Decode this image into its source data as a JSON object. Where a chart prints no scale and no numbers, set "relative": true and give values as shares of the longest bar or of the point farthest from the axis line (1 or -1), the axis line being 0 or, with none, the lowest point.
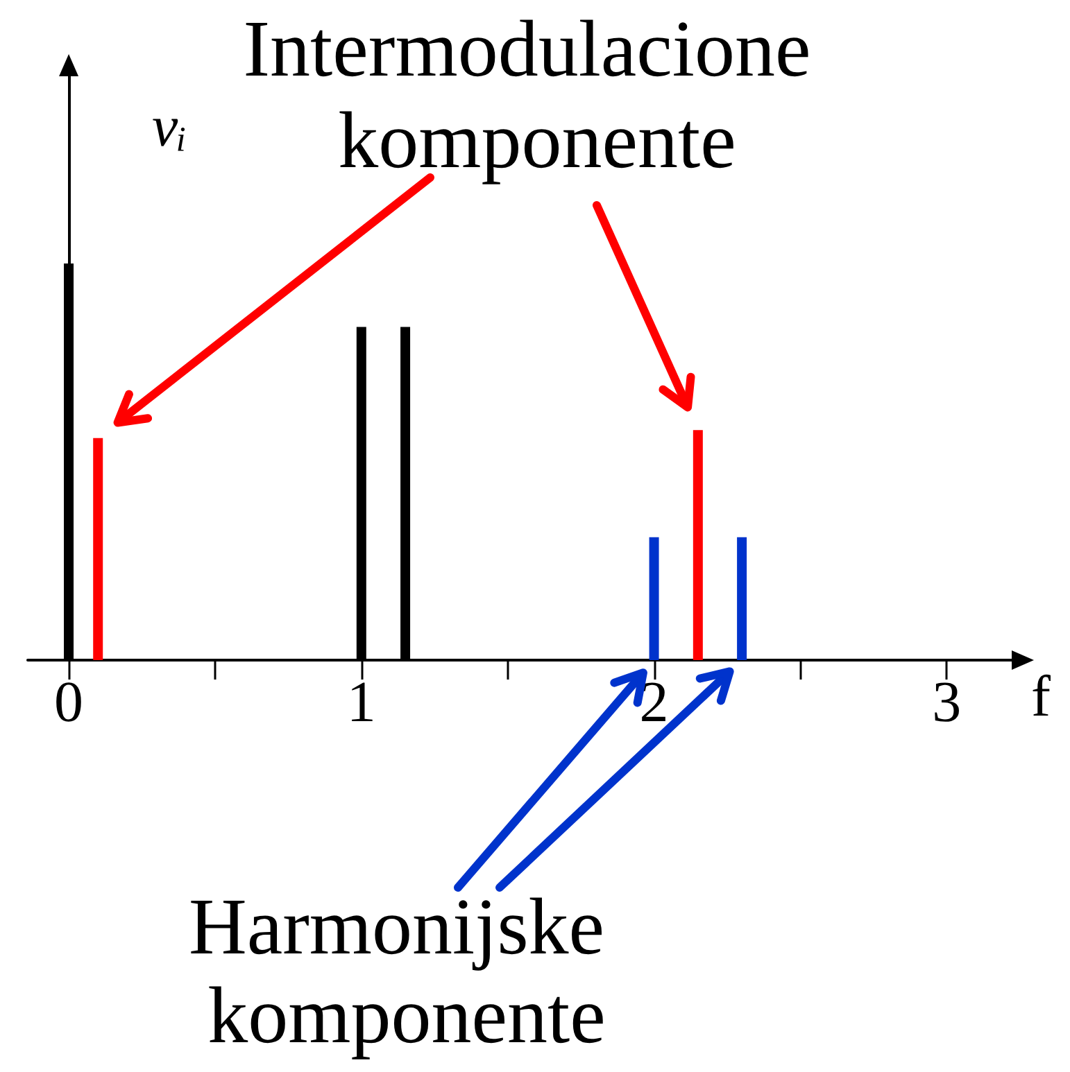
{
  "chart_data": {
    "type": "bar",
    "xlabel": "f",
    "ylabel": "vᵢ",
    "relative": true,
    "xlim": [
      -0.14,
      3.26
    ],
    "xticks": [
      0,
      {
        "value": 0.5,
        "label": null
      },
      1,
      {
        "value": 1.5,
        "label": null
      },
      2,
      {
        "value": 2.5,
        "label": null
      },
      3
    ],
    "series": [
      {
        "color": "#000000",
        "x": [
          0,
          1,
          1.15
        ],
        "values": [
          1,
          0.84,
          0.84
        ]
      },
      {
        "color": "#ff0000",
        "x": [
          0.1,
          2.15
        ],
        "values": [
          0.56,
          0.58
        ]
      },
      {
        "color": "#0033cc",
        "x": [
          2,
          2.3
        ],
        "values": [
          0.31,
          0.31
        ]
      }
    ],
    "annotations": [
      "Intermodulacione komponente",
      "Harmonijske komponente"
    ]
  }
}
